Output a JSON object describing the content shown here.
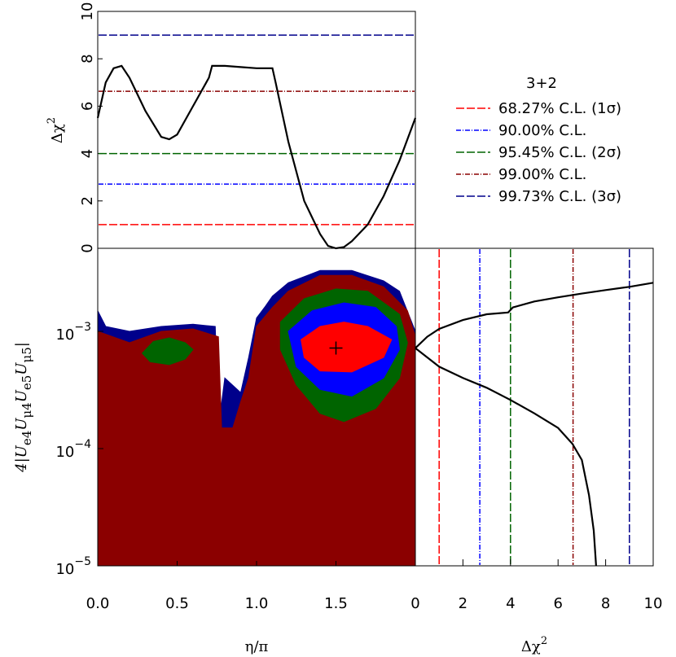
{
  "chart_data": [
    {
      "type": "line",
      "ylabel": {
        "text": "Δχ",
        "sup": "2"
      },
      "x": [
        0,
        0.05,
        0.1,
        0.15,
        0.2,
        0.3,
        0.4,
        0.45,
        0.5,
        0.6,
        0.7,
        0.72,
        0.8,
        0.9,
        1.0,
        1.1,
        1.12,
        1.2,
        1.3,
        1.4,
        1.45,
        1.5,
        1.55,
        1.6,
        1.7,
        1.8,
        1.9,
        2.0
      ],
      "values": [
        5.5,
        7.0,
        7.6,
        7.7,
        7.2,
        5.8,
        4.7,
        4.6,
        4.8,
        6.0,
        7.2,
        7.7,
        7.7,
        7.65,
        7.6,
        7.6,
        7.0,
        4.5,
        2.0,
        0.6,
        0.1,
        0,
        0.05,
        0.3,
        1.0,
        2.2,
        3.7,
        5.5
      ],
      "color": "#000000",
      "xlim": [
        0,
        2
      ],
      "ylim": [
        0,
        10
      ],
      "yticks": [
        0,
        2,
        4,
        6,
        8,
        10
      ],
      "legend": {
        "title": "3+2",
        "series": [
          {
            "name": "68.27% C.L. (1σ)",
            "color": "#ff0000",
            "dchi2": 1.0
          },
          {
            "name": "90.00% C.L.",
            "color": "#0000ff",
            "dchi2": 2.71
          },
          {
            "name": "95.45% C.L. (2σ)",
            "color": "#006400",
            "dchi2": 4.0
          },
          {
            "name": "99.00% C.L.",
            "color": "#8b0000",
            "dchi2": 6.63
          },
          {
            "name": "99.73% C.L. (3σ)",
            "color": "#00008b",
            "dchi2": 9.0
          }
        ]
      }
    },
    {
      "type": "contour",
      "log_y": true,
      "xlim": [
        0,
        2
      ],
      "ylim": [
        1e-05,
        0.00511
      ],
      "xticks": [
        {
          "value": 0,
          "label": "0.0"
        },
        {
          "value": 0.5,
          "label": "0.5"
        },
        {
          "value": 1,
          "label": "1.0"
        },
        {
          "value": 1.5,
          "label": "1.5"
        }
      ],
      "yticks": [
        {
          "value": 1e-05,
          "label": "10",
          "exp": "−5"
        },
        {
          "value": 0.0001,
          "label": "10",
          "exp": "−4"
        },
        {
          "value": 0.001,
          "label": "10",
          "exp": "−3"
        }
      ],
      "xlabel": "η/π",
      "ylabel": [
        {
          "text": "4|U",
          "sub": false
        },
        {
          "text": "e4",
          "sub": true
        },
        {
          "text": "U",
          "sub": false
        },
        {
          "text": "μ4",
          "sub": true
        },
        {
          "text": "U",
          "sub": false
        },
        {
          "text": "e5",
          "sub": true
        },
        {
          "text": "U",
          "sub": false
        },
        {
          "text": "μ5",
          "sub": true
        },
        {
          "text": "|",
          "sub": false
        }
      ],
      "regions": [
        {
          "color": "#00008b",
          "closed_to_bottom": true,
          "x": [
            0,
            0.05,
            0.2,
            0.4,
            0.6,
            0.74,
            0.76,
            0.8,
            0.9,
            0.95,
            1.0,
            1.05,
            1.1,
            1.2,
            1.4,
            1.6,
            1.8,
            1.9,
            2.0
          ],
          "y": [
            0.0015,
            0.0011,
            0.001,
            0.0011,
            0.00115,
            0.0011,
            0.00015,
            0.0004,
            0.0003,
            0.0006,
            0.0013,
            0.0016,
            0.002,
            0.0026,
            0.0033,
            0.0033,
            0.0027,
            0.0022,
            0.001
          ]
        },
        {
          "color": "#8b0000",
          "closed_to_bottom": true,
          "x": [
            0,
            0.2,
            0.4,
            0.6,
            0.76,
            0.78,
            0.85,
            0.9,
            0.95,
            1.0,
            1.1,
            1.2,
            1.4,
            1.6,
            1.8,
            1.95,
            2.0
          ],
          "y": [
            0.001,
            0.0008,
            0.001,
            0.00105,
            0.0009,
            0.00015,
            0.00015,
            0.00025,
            0.0004,
            0.0011,
            0.0016,
            0.0022,
            0.003,
            0.003,
            0.0024,
            0.0015,
            0.0009
          ]
        },
        {
          "color": "#006400",
          "closed_to_bottom": false,
          "x": [
            1.15,
            1.3,
            1.5,
            1.7,
            1.9,
            1.95,
            1.9,
            1.75,
            1.55,
            1.4,
            1.25,
            1.15
          ],
          "y": [
            0.0012,
            0.0019,
            0.0023,
            0.0022,
            0.0014,
            0.0008,
            0.0004,
            0.00022,
            0.00017,
            0.0002,
            0.00035,
            0.0007
          ]
        },
        {
          "color": "#006400",
          "closed_to_bottom": false,
          "x": [
            0.28,
            0.35,
            0.45,
            0.55,
            0.6,
            0.55,
            0.45,
            0.33
          ],
          "y": [
            0.00065,
            0.00082,
            0.00088,
            0.0008,
            0.0007,
            0.00058,
            0.00052,
            0.00055
          ]
        },
        {
          "color": "#0000ff",
          "closed_to_bottom": false,
          "x": [
            1.2,
            1.35,
            1.55,
            1.75,
            1.88,
            1.9,
            1.8,
            1.6,
            1.4,
            1.25
          ],
          "y": [
            0.001,
            0.0015,
            0.00175,
            0.0016,
            0.0011,
            0.0007,
            0.0004,
            0.00028,
            0.00032,
            0.0005
          ]
        },
        {
          "color": "#ff0000",
          "closed_to_bottom": false,
          "x": [
            1.28,
            1.4,
            1.55,
            1.7,
            1.85,
            1.8,
            1.6,
            1.4,
            1.3
          ],
          "y": [
            0.00085,
            0.0011,
            0.0012,
            0.0011,
            0.00085,
            0.0006,
            0.00045,
            0.00046,
            0.0006
          ]
        }
      ],
      "best_fit": {
        "x": 1.5,
        "y": 0.00072
      }
    },
    {
      "type": "line",
      "log_y": true,
      "xlim": [
        0,
        10
      ],
      "ylim": [
        1e-05,
        0.00511
      ],
      "xticks": [
        0,
        2,
        4,
        6,
        8,
        10
      ],
      "xlabel": {
        "text": "Δχ",
        "sup": "2"
      },
      "series": [
        {
          "color": "#000000",
          "x": [
            0,
            0.5,
            1,
            2,
            3,
            3.9,
            4.1,
            5,
            6,
            7,
            8,
            9,
            10
          ],
          "values": [
            0.00072,
            0.0009,
            0.00105,
            0.00125,
            0.0014,
            0.00145,
            0.0016,
            0.0018,
            0.00195,
            0.0021,
            0.00225,
            0.0024,
            0.0026
          ]
        },
        {
          "color": "#000000",
          "x": [
            0,
            0.5,
            1,
            2,
            3,
            4,
            5,
            6,
            6.6,
            7,
            7.3,
            7.5,
            7.6
          ],
          "values": [
            0.00072,
            0.0006,
            0.0005,
            0.0004,
            0.00033,
            0.00026,
            0.0002,
            0.00015,
            0.00011,
            8e-05,
            4e-05,
            2e-05,
            1e-05
          ]
        }
      ]
    }
  ]
}
